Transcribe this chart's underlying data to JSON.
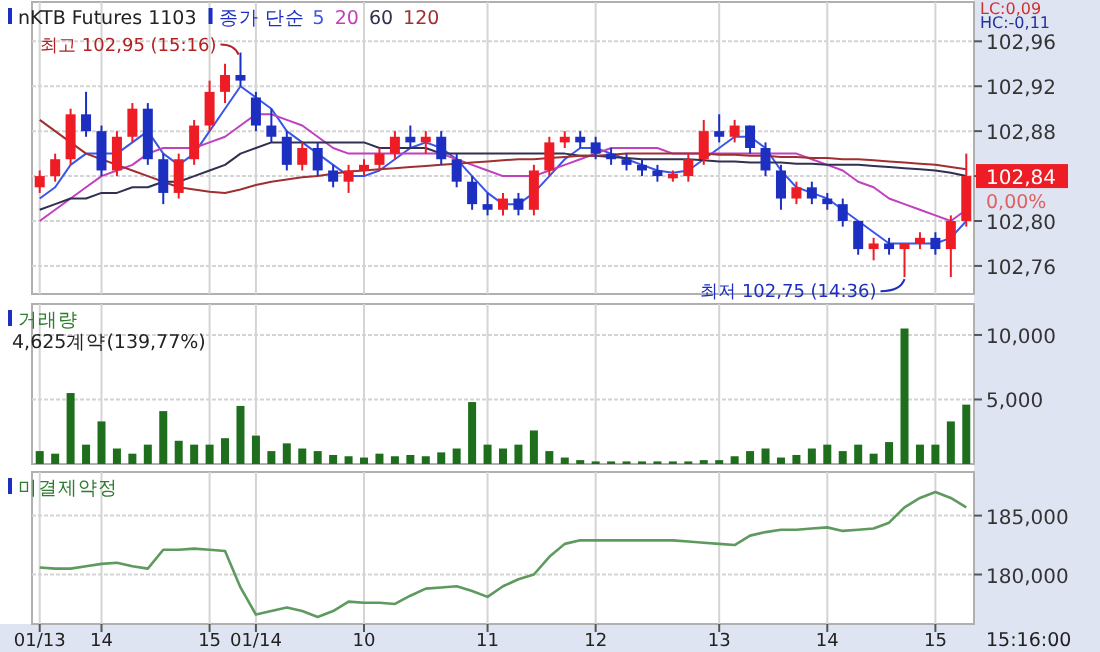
{
  "chart_data": [
    {
      "type": "candlestick",
      "title": "nKTB Futures 1103",
      "legend_title": "종가 단순",
      "legend": "top left",
      "grid": true,
      "tick_labels": "y",
      "categories": [
        "01/13",
        null,
        null,
        null,
        "14",
        null,
        null,
        null,
        null,
        null,
        null,
        "15",
        null,
        null,
        "01/14",
        null,
        null,
        null,
        null,
        null,
        null,
        "10",
        null,
        null,
        null,
        null,
        null,
        null,
        null,
        "11",
        null,
        null,
        null,
        null,
        null,
        null,
        "12",
        null,
        null,
        null,
        null,
        null,
        null,
        null,
        "13",
        null,
        null,
        null,
        null,
        null,
        null,
        "14",
        null,
        null,
        null,
        null,
        null,
        null,
        "15",
        null,
        null
      ],
      "ohlc": [
        [
          102.83,
          102.845,
          102.825,
          102.84
        ],
        [
          102.84,
          102.86,
          102.835,
          102.855
        ],
        [
          102.855,
          102.9,
          102.85,
          102.895
        ],
        [
          102.895,
          102.915,
          102.875,
          102.88
        ],
        [
          102.88,
          102.885,
          102.84,
          102.845
        ],
        [
          102.845,
          102.88,
          102.84,
          102.875
        ],
        [
          102.875,
          102.905,
          102.87,
          102.9
        ],
        [
          102.9,
          102.905,
          102.85,
          102.855
        ],
        [
          102.855,
          102.86,
          102.815,
          102.825
        ],
        [
          102.825,
          102.86,
          102.82,
          102.855
        ],
        [
          102.855,
          102.89,
          102.85,
          102.885
        ],
        [
          102.885,
          102.925,
          102.88,
          102.915
        ],
        [
          102.915,
          102.94,
          102.905,
          102.93
        ],
        [
          102.93,
          102.95,
          102.92,
          102.925
        ],
        [
          102.91,
          102.915,
          102.88,
          102.885
        ],
        [
          102.885,
          102.9,
          102.87,
          102.875
        ],
        [
          102.875,
          102.88,
          102.845,
          102.85
        ],
        [
          102.85,
          102.87,
          102.845,
          102.865
        ],
        [
          102.865,
          102.87,
          102.84,
          102.845
        ],
        [
          102.845,
          102.85,
          102.83,
          102.835
        ],
        [
          102.835,
          102.85,
          102.825,
          102.845
        ],
        [
          102.845,
          102.855,
          102.84,
          102.85
        ],
        [
          102.85,
          102.865,
          102.845,
          102.86
        ],
        [
          102.86,
          102.88,
          102.855,
          102.875
        ],
        [
          102.875,
          102.885,
          102.865,
          102.87
        ],
        [
          102.87,
          102.88,
          102.86,
          102.875
        ],
        [
          102.875,
          102.88,
          102.85,
          102.855
        ],
        [
          102.855,
          102.86,
          102.83,
          102.835
        ],
        [
          102.835,
          102.84,
          102.81,
          102.815
        ],
        [
          102.815,
          102.825,
          102.805,
          102.81
        ],
        [
          102.81,
          102.825,
          102.805,
          102.82
        ],
        [
          102.82,
          102.825,
          102.805,
          102.81
        ],
        [
          102.81,
          102.85,
          102.805,
          102.845
        ],
        [
          102.845,
          102.875,
          102.84,
          102.87
        ],
        [
          102.87,
          102.88,
          102.865,
          102.875
        ],
        [
          102.875,
          102.88,
          102.865,
          102.87
        ],
        [
          102.87,
          102.875,
          102.855,
          102.86
        ],
        [
          102.86,
          102.865,
          102.85,
          102.855
        ],
        [
          102.855,
          102.86,
          102.845,
          102.85
        ],
        [
          102.85,
          102.855,
          102.84,
          102.845
        ],
        [
          102.845,
          102.85,
          102.835,
          102.84
        ],
        [
          102.838,
          102.845,
          102.835,
          102.842
        ],
        [
          102.84,
          102.86,
          102.835,
          102.855
        ],
        [
          102.855,
          102.89,
          102.85,
          102.88
        ],
        [
          102.88,
          102.895,
          102.87,
          102.875
        ],
        [
          102.875,
          102.89,
          102.87,
          102.885
        ],
        [
          102.885,
          102.885,
          102.86,
          102.865
        ],
        [
          102.865,
          102.87,
          102.84,
          102.845
        ],
        [
          102.845,
          102.85,
          102.81,
          102.82
        ],
        [
          102.82,
          102.835,
          102.815,
          102.83
        ],
        [
          102.83,
          102.835,
          102.815,
          102.82
        ],
        [
          102.82,
          102.825,
          102.81,
          102.815
        ],
        [
          102.815,
          102.82,
          102.795,
          102.8
        ],
        [
          102.8,
          102.8,
          102.77,
          102.775
        ],
        [
          102.775,
          102.785,
          102.765,
          102.78
        ],
        [
          102.78,
          102.785,
          102.77,
          102.775
        ],
        [
          102.775,
          102.78,
          102.75,
          102.78
        ],
        [
          102.78,
          102.79,
          102.775,
          102.785
        ],
        [
          102.785,
          102.79,
          102.77,
          102.775
        ],
        [
          102.775,
          102.805,
          102.75,
          102.8
        ],
        [
          102.8,
          102.86,
          102.795,
          102.84
        ]
      ],
      "series": [
        {
          "name": "5",
          "type": "line",
          "color": "#3a55e8",
          "values": [
            102.82,
            102.83,
            102.85,
            102.86,
            102.86,
            102.86,
            102.87,
            102.88,
            102.86,
            102.85,
            102.86,
            102.88,
            102.9,
            102.92,
            102.91,
            102.9,
            102.88,
            102.87,
            102.86,
            102.85,
            102.84,
            102.84,
            102.845,
            102.855,
            102.865,
            102.87,
            102.865,
            102.855,
            102.84,
            102.825,
            102.815,
            102.815,
            102.825,
            102.84,
            102.855,
            102.865,
            102.865,
            102.86,
            102.855,
            102.85,
            102.845,
            102.843,
            102.845,
            102.855,
            102.865,
            102.875,
            102.875,
            102.865,
            102.845,
            102.83,
            102.825,
            102.82,
            102.81,
            102.8,
            102.79,
            102.78,
            102.78,
            102.78,
            102.78,
            102.785,
            102.8
          ]
        },
        {
          "name": "20",
          "type": "line",
          "color": "#c040c0",
          "values": [
            102.8,
            102.81,
            102.82,
            102.83,
            102.84,
            102.845,
            102.85,
            102.86,
            102.865,
            102.865,
            102.865,
            102.87,
            102.875,
            102.885,
            102.895,
            102.895,
            102.89,
            102.885,
            102.875,
            102.865,
            102.86,
            102.86,
            102.86,
            102.86,
            102.86,
            102.86,
            102.86,
            102.855,
            102.85,
            102.845,
            102.84,
            102.84,
            102.84,
            102.845,
            102.85,
            102.855,
            102.86,
            102.865,
            102.865,
            102.865,
            102.865,
            102.86,
            102.86,
            102.86,
            102.86,
            102.86,
            102.86,
            102.86,
            102.86,
            102.86,
            102.855,
            102.85,
            102.845,
            102.835,
            102.83,
            102.82,
            102.815,
            102.81,
            102.805,
            102.8,
            102.81
          ]
        },
        {
          "name": "60",
          "type": "line",
          "color": "#303050",
          "values": [
            102.81,
            102.815,
            102.82,
            102.82,
            102.825,
            102.825,
            102.83,
            102.83,
            102.835,
            102.835,
            102.84,
            102.845,
            102.85,
            102.86,
            102.865,
            102.87,
            102.87,
            102.87,
            102.87,
            102.87,
            102.87,
            102.87,
            102.865,
            102.865,
            102.865,
            102.865,
            102.86,
            102.86,
            102.86,
            102.86,
            102.86,
            102.86,
            102.86,
            102.86,
            102.86,
            102.858,
            102.858,
            102.857,
            102.856,
            102.855,
            102.855,
            102.855,
            102.855,
            102.854,
            102.853,
            102.853,
            102.852,
            102.852,
            102.852,
            102.851,
            102.851,
            102.85,
            102.85,
            102.85,
            102.849,
            102.848,
            102.847,
            102.846,
            102.845,
            102.843,
            102.84
          ]
        },
        {
          "name": "120",
          "type": "line",
          "color": "#a03030",
          "values": [
            102.89,
            102.88,
            102.87,
            102.86,
            102.855,
            102.85,
            102.845,
            102.84,
            102.835,
            102.83,
            102.828,
            102.826,
            102.825,
            102.828,
            102.832,
            102.835,
            102.837,
            102.839,
            102.84,
            102.842,
            102.844,
            102.845,
            102.846,
            102.847,
            102.848,
            102.849,
            102.85,
            102.851,
            102.852,
            102.853,
            102.854,
            102.855,
            102.855,
            102.856,
            102.857,
            102.858,
            102.858,
            102.859,
            102.86,
            102.86,
            102.86,
            102.86,
            102.86,
            102.86,
            102.859,
            102.859,
            102.858,
            102.858,
            102.857,
            102.857,
            102.856,
            102.856,
            102.855,
            102.855,
            102.854,
            102.853,
            102.852,
            102.851,
            102.85,
            102.848,
            102.846
          ]
        }
      ],
      "ylim": [
        102.735,
        102.995
      ],
      "yticks": [
        {
          "value": 102.76,
          "label": "102,76"
        },
        {
          "value": 102.8,
          "label": "102,80"
        },
        {
          "value": 102.84,
          "label": null
        },
        {
          "value": 102.88,
          "label": "102,88"
        },
        {
          "value": 102.92,
          "label": "102,92"
        },
        {
          "value": 102.96,
          "label": "102,96"
        }
      ],
      "annotations": [
        "최고 102,95 (15:16)",
        "최저 102,75 (14:36)",
        "LC:0,09",
        "HC:-0,11",
        "102,84",
        "0,00%"
      ]
    },
    {
      "type": "bar",
      "title": "거래량",
      "grid": true,
      "tick_labels": "y",
      "color": "#1e6e1e",
      "categories": [
        "01/13",
        null,
        null,
        null,
        "14",
        null,
        null,
        null,
        null,
        null,
        null,
        "15",
        null,
        null,
        "01/14",
        null,
        null,
        null,
        null,
        null,
        null,
        "10",
        null,
        null,
        null,
        null,
        null,
        null,
        null,
        "11",
        null,
        null,
        null,
        null,
        null,
        null,
        "12",
        null,
        null,
        null,
        null,
        null,
        null,
        null,
        "13",
        null,
        null,
        null,
        null,
        null,
        null,
        "14",
        null,
        null,
        null,
        null,
        null,
        null,
        "15",
        null,
        null
      ],
      "values": [
        1000,
        800,
        5500,
        1500,
        3300,
        1200,
        800,
        1500,
        4100,
        1800,
        1500,
        1500,
        2000,
        4500,
        2200,
        1000,
        1600,
        1200,
        1000,
        700,
        600,
        500,
        800,
        600,
        700,
        600,
        900,
        1200,
        4800,
        1500,
        1200,
        1500,
        2600,
        1000,
        500,
        300,
        200,
        200,
        200,
        200,
        200,
        200,
        200,
        300,
        300,
        600,
        1000,
        1200,
        500,
        700,
        1200,
        1500,
        1000,
        1500,
        800,
        1700,
        10500,
        1500,
        1500,
        3300,
        4600
      ],
      "ylim": [
        0,
        12400
      ],
      "yticks": [
        {
          "value": 5000,
          "label": "5,000"
        },
        {
          "value": 10000,
          "label": "10,000"
        }
      ],
      "annotations": [
        "4,625계약(139,77%)"
      ]
    },
    {
      "type": "line",
      "title": "미결제약정",
      "grid": true,
      "color": "#5e9a5e",
      "categories": [
        "01/13",
        null,
        null,
        null,
        "14",
        null,
        null,
        null,
        null,
        null,
        null,
        "15",
        null,
        null,
        "01/14",
        null,
        null,
        null,
        null,
        null,
        null,
        "10",
        null,
        null,
        null,
        null,
        null,
        null,
        null,
        "11",
        null,
        null,
        null,
        null,
        null,
        null,
        "12",
        null,
        null,
        null,
        null,
        null,
        null,
        null,
        "13",
        null,
        null,
        null,
        null,
        null,
        null,
        "14",
        null,
        null,
        null,
        null,
        null,
        null,
        "15",
        null,
        null
      ],
      "values": [
        180600,
        180500,
        180500,
        180700,
        180900,
        181000,
        180700,
        180500,
        182100,
        182100,
        182200,
        182100,
        182000,
        178900,
        176600,
        176900,
        177200,
        176900,
        176400,
        176900,
        177700,
        177600,
        177600,
        177500,
        178200,
        178800,
        178900,
        179000,
        178600,
        178100,
        179000,
        179600,
        180000,
        181500,
        182600,
        182900,
        182900,
        182900,
        182900,
        182900,
        182900,
        182900,
        182800,
        182700,
        182600,
        182500,
        183300,
        183600,
        183800,
        183800,
        183900,
        184000,
        183700,
        183800,
        183900,
        184400,
        185700,
        186500,
        187000,
        186500,
        185700
      ],
      "ylim": [
        175800,
        188700
      ],
      "yticks": [
        {
          "value": 180000,
          "label": "180,000"
        },
        {
          "value": 185000,
          "label": "185,000"
        }
      ],
      "annotations": [
        "15:16:00"
      ]
    }
  ]
}
